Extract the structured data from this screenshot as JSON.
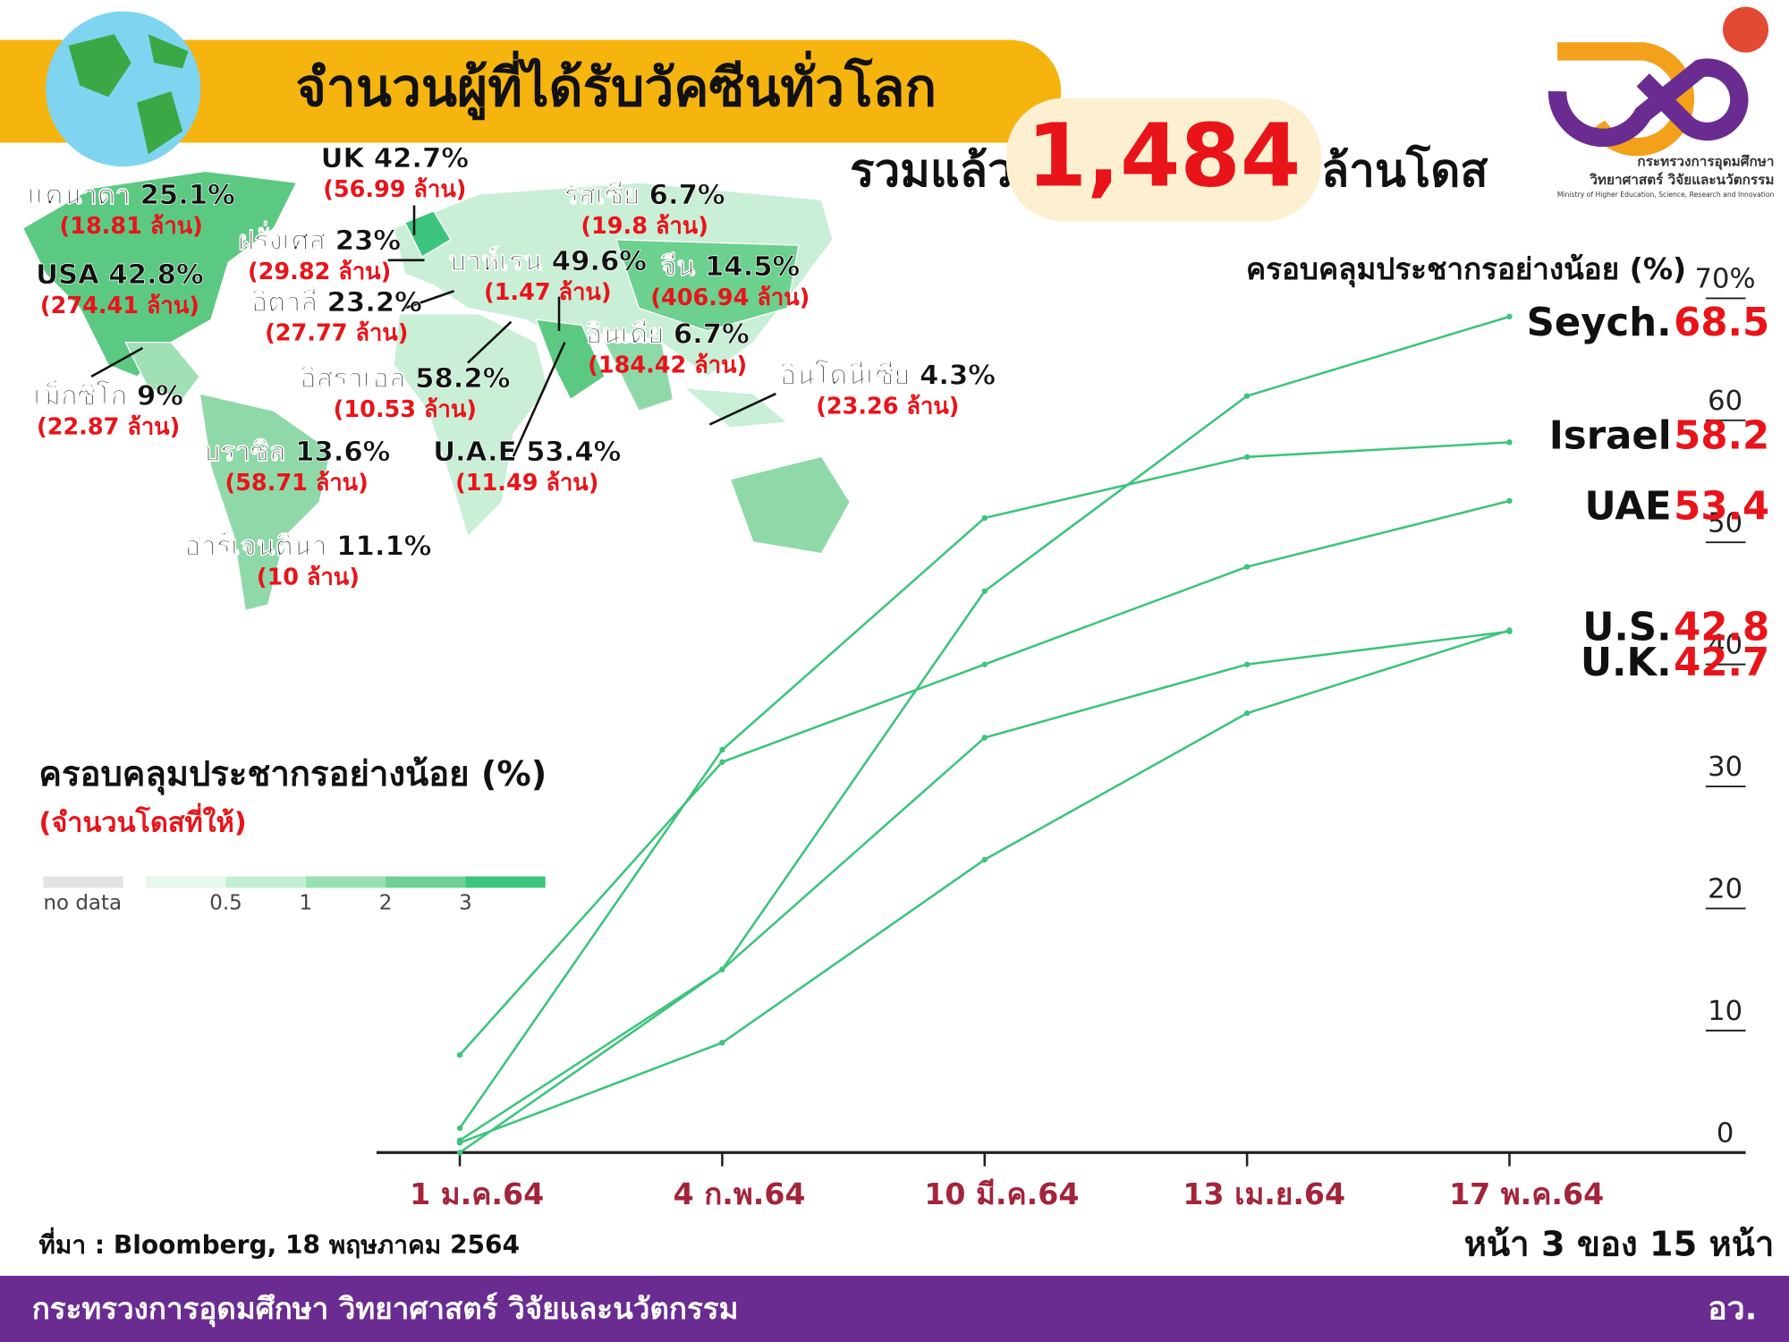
{
  "header": {
    "title": "จำนวนผู้ที่ได้รับวัคซีนทั่วโลก",
    "total_prefix": "รวมแล้ว",
    "total": "1,484",
    "total_unit": "ล้านโดส"
  },
  "logo": {
    "line1": "กระทรวงการอุดมศึกษา",
    "line2": "วิทยาศาสตร์ วิจัยและนวัตกรรม",
    "line3": "Ministry of Higher Education, Science, Research and Innovation"
  },
  "map_labels": [
    {
      "name": "แคนาดา 25.1%",
      "doses": "(18.81 ล้าน)"
    },
    {
      "name": "UK 42.7%",
      "doses": "(56.99 ล้าน)"
    },
    {
      "name": "รัสเซีย 6.7%",
      "doses": "(19.8 ล้าน)"
    },
    {
      "name": "ฝรั่งเศส 23%",
      "doses": "(29.82 ล้าน)"
    },
    {
      "name": "บาห์เรน 49.6%",
      "doses": "(1.47 ล้าน)"
    },
    {
      "name": "จีน 14.5%",
      "doses": "(406.94 ล้าน)"
    },
    {
      "name": "USA 42.8%",
      "doses": "(274.41 ล้าน)"
    },
    {
      "name": "อิตาลี 23.2%",
      "doses": "(27.77 ล้าน)"
    },
    {
      "name": "อินเดีย 6.7%",
      "doses": "(184.42 ล้าน)"
    },
    {
      "name": "อิสราเอล 58.2%",
      "doses": "(10.53 ล้าน)"
    },
    {
      "name": "อินโดนีเซีย 4.3%",
      "doses": "(23.26 ล้าน)"
    },
    {
      "name": "เม็กซิโก 9%",
      "doses": "(22.87 ล้าน)"
    },
    {
      "name": "บราซิล 13.6%",
      "doses": "(58.71 ล้าน)"
    },
    {
      "name": "U.A.E 53.4%",
      "doses": "(11.49 ล้าน)"
    },
    {
      "name": "อาร์เจนตินา 11.1%",
      "doses": "(10 ล้าน)"
    }
  ],
  "legend": {
    "title": "ครอบคลุมประชากรอย่างน้อย (%)",
    "subtitle": "(จำนวนโดสที่ให้)",
    "no_data": "no data",
    "labels": [
      0.5,
      1,
      2,
      3
    ]
  },
  "chart_data": {
    "type": "line",
    "y_label": "ครอบคลุมประชากรอย่างน้อย (%)",
    "categories": [
      "1 ม.ค.64",
      "4 ก.พ.64",
      "10 มี.ค.64",
      "13 เม.ย.64",
      "17 พ.ค.64"
    ],
    "ylim": [
      0,
      72
    ],
    "yticks": [
      0,
      10,
      20,
      30,
      40,
      50,
      60,
      {
        "value": 70,
        "label": "70%"
      }
    ],
    "series": [
      {
        "name": "Seych.",
        "color": "#3cc47c",
        "values": [
          0,
          15,
          46,
          62,
          68.5
        ]
      },
      {
        "name": "Israel",
        "color": "#3cc47c",
        "values": [
          2,
          33,
          52,
          57,
          58.2
        ]
      },
      {
        "name": "UAE",
        "color": "#3cc47c",
        "values": [
          8,
          32,
          40,
          48,
          53.4
        ]
      },
      {
        "name": "U.S.",
        "color": "#3cc47c",
        "values": [
          0.8,
          9,
          24,
          36,
          42.8
        ]
      },
      {
        "name": "U.K.",
        "color": "#3cc47c",
        "values": [
          1,
          15,
          34,
          40,
          42.7
        ]
      }
    ]
  },
  "source": "ที่มา : Bloomberg, 18 พฤษภาคม 2564",
  "page": "หน้า 3 ของ 15 หน้า",
  "footer": {
    "ministry": "กระทรวงการอุดมศึกษา วิทยาศาสตร์ วิจัยและนวัตกรรม",
    "short": "อว."
  }
}
